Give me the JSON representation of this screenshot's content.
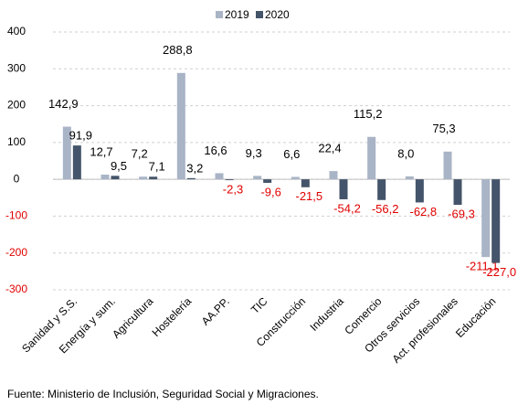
{
  "chart_data": {
    "type": "bar",
    "categories": [
      "Sanidad y S.S.",
      "Energía y sum.",
      "Agricultura",
      "Hostelería",
      "AA.PP.",
      "TIC",
      "Construcción",
      "Industria",
      "Comercio",
      "Otros servicios",
      "Act. profesionales",
      "Educación"
    ],
    "series": [
      {
        "name": "2019",
        "color": "#a9b4c6",
        "values": [
          142.9,
          12.7,
          7.2,
          288.8,
          16.6,
          9.3,
          6.6,
          22.4,
          115.2,
          8.0,
          75.3,
          -211.1
        ],
        "value_labels": [
          "142,9",
          "12,7",
          "7,2",
          "288,8",
          "16,6",
          "9,3",
          "6,6",
          "22,4",
          "115,2",
          "8,0",
          "75,3",
          "-211,1"
        ]
      },
      {
        "name": "2020",
        "color": "#44546a",
        "values": [
          91.9,
          9.5,
          7.1,
          3.2,
          -2.3,
          -9.6,
          -21.5,
          -54.2,
          -56.2,
          -62.8,
          -69.3,
          -227.0
        ],
        "value_labels": [
          "91,9",
          "9,5",
          "7,1",
          "3,2",
          "-2,3",
          "-9,6",
          "-21,5",
          "-54,2",
          "-56,2",
          "-62,8",
          "-69,3",
          "-227,0"
        ]
      }
    ],
    "ylim": [
      -300,
      400
    ],
    "yticks": [
      -300,
      -200,
      -100,
      0,
      100,
      200,
      300,
      400
    ],
    "grid": true,
    "legend": "top",
    "source": "Fuente:  Ministerio de Inclusión, Seguridad Social y Migraciones."
  }
}
